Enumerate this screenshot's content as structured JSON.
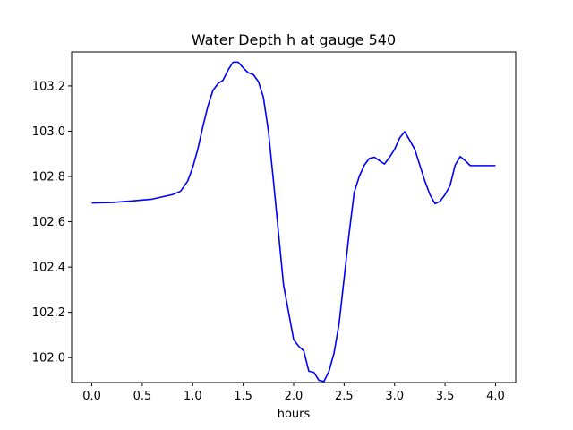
{
  "chart_data": {
    "type": "line",
    "title": "Water Depth h at gauge 540",
    "xlabel": "hours",
    "ylabel": "",
    "xlim": [
      -0.2,
      4.2
    ],
    "ylim": [
      101.89,
      103.35
    ],
    "grid": false,
    "x_ticks": [
      0.0,
      0.5,
      1.0,
      1.5,
      2.0,
      2.5,
      3.0,
      3.5,
      4.0
    ],
    "x_tick_labels": [
      "0.0",
      "0.5",
      "1.0",
      "1.5",
      "2.0",
      "2.5",
      "3.0",
      "3.5",
      "4.0"
    ],
    "y_ticks": [
      102.0,
      102.2,
      102.4,
      102.6,
      102.8,
      103.0,
      103.2
    ],
    "y_tick_labels": [
      "102.0",
      "102.2",
      "102.4",
      "102.6",
      "102.8",
      "103.0",
      "103.2"
    ],
    "series": [
      {
        "color": "#0000ff",
        "x": [
          0.0,
          0.2,
          0.4,
          0.6,
          0.7,
          0.8,
          0.88,
          0.95,
          1.0,
          1.05,
          1.1,
          1.15,
          1.2,
          1.25,
          1.3,
          1.35,
          1.4,
          1.45,
          1.5,
          1.55,
          1.6,
          1.65,
          1.7,
          1.75,
          1.8,
          1.85,
          1.9,
          1.95,
          2.0,
          2.05,
          2.1,
          2.15,
          2.2,
          2.25,
          2.3,
          2.35,
          2.4,
          2.45,
          2.5,
          2.55,
          2.6,
          2.65,
          2.7,
          2.75,
          2.8,
          2.85,
          2.9,
          2.95,
          3.0,
          3.05,
          3.1,
          3.15,
          3.2,
          3.25,
          3.3,
          3.35,
          3.4,
          3.45,
          3.5,
          3.55,
          3.6,
          3.65,
          3.7,
          3.75,
          3.8,
          3.85,
          3.9,
          3.95,
          4.0
        ],
        "y": [
          102.683,
          102.685,
          102.692,
          102.7,
          102.71,
          102.72,
          102.735,
          102.78,
          102.84,
          102.92,
          103.02,
          103.11,
          103.18,
          103.21,
          103.225,
          103.27,
          103.305,
          103.305,
          103.28,
          103.258,
          103.25,
          103.22,
          103.15,
          103.0,
          102.78,
          102.55,
          102.32,
          102.2,
          102.08,
          102.05,
          102.03,
          101.94,
          101.935,
          101.9,
          101.895,
          101.94,
          102.02,
          102.15,
          102.35,
          102.55,
          102.73,
          102.8,
          102.85,
          102.88,
          102.885,
          102.87,
          102.855,
          102.885,
          102.92,
          102.97,
          102.998,
          102.96,
          102.92,
          102.85,
          102.78,
          102.72,
          102.68,
          102.69,
          102.72,
          102.76,
          102.85,
          102.888,
          102.87,
          102.848,
          102.848,
          102.848,
          102.848,
          102.848,
          102.848
        ]
      }
    ]
  }
}
